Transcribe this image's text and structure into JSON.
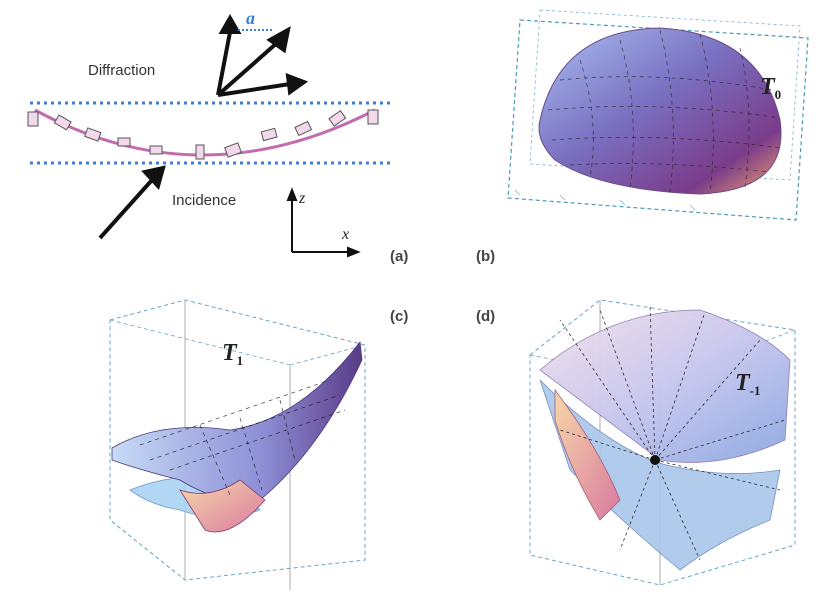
{
  "figure": {
    "panel_a": {
      "diffraction_label": "Diffraction",
      "incidence_label": "Incidence",
      "period_symbol": "a",
      "axis_z": "z",
      "axis_x": "x"
    },
    "panel_b": {
      "surface_symbol": "T",
      "surface_subscript": "0"
    },
    "panel_c": {
      "surface_symbol": "T",
      "surface_subscript": "1"
    },
    "panel_d": {
      "surface_symbol": "T",
      "surface_subscript": "-1"
    },
    "panel_tags": {
      "a": "(a)",
      "b": "(b)",
      "c": "(c)",
      "d": "(d)"
    },
    "colors": {
      "dotted_lines": "#3d7fd6",
      "grating_curve": "#c36bb0",
      "surface_light": "#b7c8ef",
      "surface_dark": "#5a3b86",
      "surface_warm": "#f1a779"
    }
  }
}
